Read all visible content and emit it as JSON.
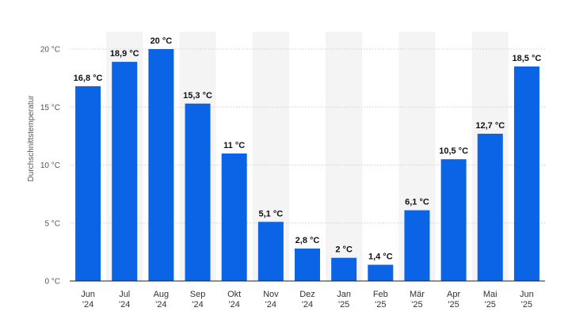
{
  "chart_data": {
    "type": "bar",
    "ylabel": "Durchschnittstemperatur",
    "ylim": [
      0,
      20
    ],
    "yticks": [
      0,
      5,
      10,
      15,
      20
    ],
    "ytick_labels": [
      "0 °C",
      "5 °C",
      "10 °C",
      "15 °C",
      "20 °C"
    ],
    "categories": [
      [
        "Jun",
        "'24"
      ],
      [
        "Jul",
        "'24"
      ],
      [
        "Aug",
        "'24"
      ],
      [
        "Sep",
        "'24"
      ],
      [
        "Okt",
        "'24"
      ],
      [
        "Nov",
        "'24"
      ],
      [
        "Dez",
        "'24"
      ],
      [
        "Jan",
        "'25"
      ],
      [
        "Feb",
        "'25"
      ],
      [
        "Mär",
        "'25"
      ],
      [
        "Apr",
        "'25"
      ],
      [
        "Mai",
        "'25"
      ],
      [
        "Jun",
        "'25"
      ]
    ],
    "values": [
      16.8,
      18.9,
      20,
      15.3,
      11,
      5.1,
      2.8,
      2,
      1.4,
      6.1,
      10.5,
      12.7,
      18.5
    ],
    "data_labels": [
      "16,8 °C",
      "18,9 °C",
      "20 °C",
      "15,3 °C",
      "11 °C",
      "5,1 °C",
      "2,8 °C",
      "2 °C",
      "1,4 °C",
      "6,1 °C",
      "10,5 °C",
      "12,7 °C",
      "18,5 °C"
    ],
    "grid": true,
    "legend": "none",
    "colors": {
      "bar": "#0b63e5",
      "band": "#f4f4f4",
      "grid": "#cfcfcf",
      "axis": "#222222"
    }
  }
}
